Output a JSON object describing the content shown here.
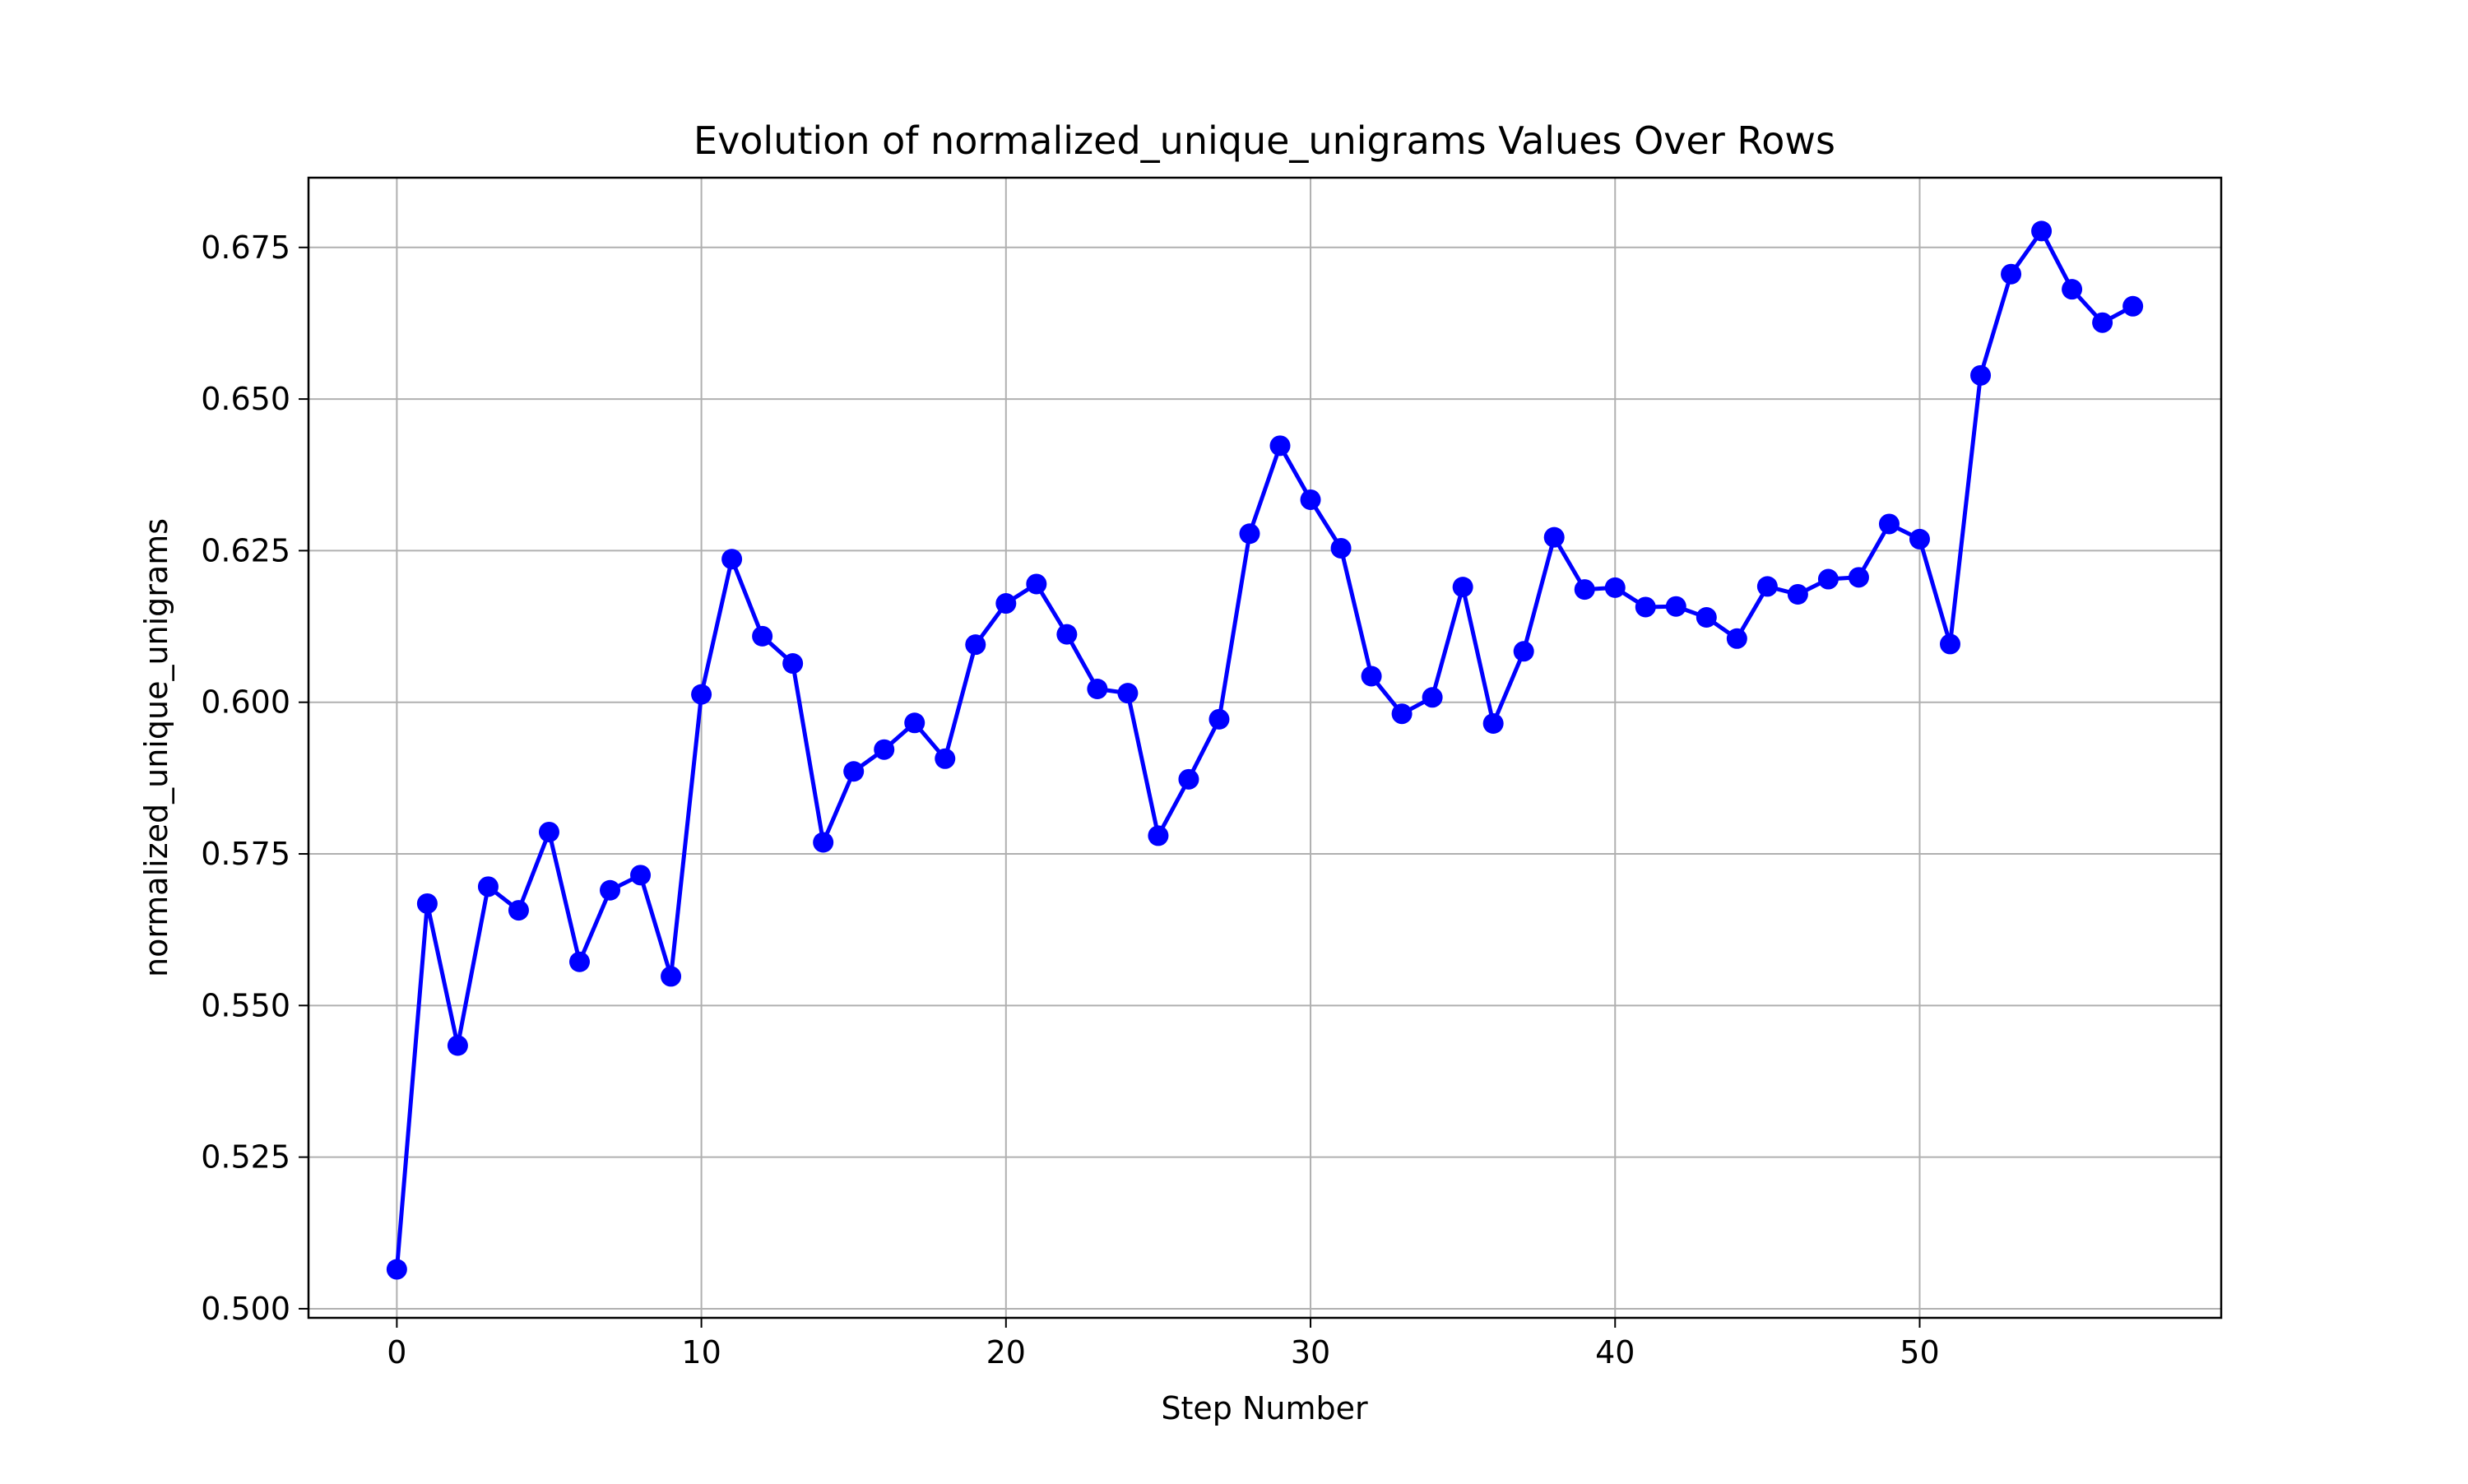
{
  "chart_data": {
    "type": "line",
    "title": "Evolution of normalized_unique_unigrams Values Over Rows",
    "xlabel": "Step Number",
    "ylabel": "normalized_unique_unigrams",
    "xlim": [
      -2.9,
      59.9
    ],
    "ylim": [
      0.4985,
      0.6865
    ],
    "x_ticks": [
      0,
      10,
      20,
      30,
      40,
      50
    ],
    "y_ticks": [
      0.5,
      0.525,
      0.55,
      0.575,
      0.6,
      0.625,
      0.65,
      0.675
    ],
    "x_tick_labels": [
      "0",
      "10",
      "20",
      "30",
      "40",
      "50"
    ],
    "y_tick_labels": [
      "0.500",
      "0.525",
      "0.550",
      "0.575",
      "0.600",
      "0.625",
      "0.650",
      "0.675"
    ],
    "grid": true,
    "legend": "none",
    "series": [
      {
        "color": "#0000ff",
        "marker": "circle",
        "x": [
          0,
          1,
          2,
          3,
          4,
          5,
          6,
          7,
          8,
          9,
          10,
          11,
          12,
          13,
          14,
          15,
          16,
          17,
          18,
          19,
          20,
          21,
          22,
          23,
          24,
          25,
          26,
          27,
          28,
          29,
          30,
          31,
          32,
          33,
          34,
          35,
          36,
          37,
          38,
          39,
          40,
          41,
          42,
          43,
          44,
          45,
          46,
          47,
          48,
          49,
          50,
          51,
          52,
          53,
          54,
          55,
          56,
          57
        ],
        "values": [
          0.5065,
          0.5668,
          0.5434,
          0.5696,
          0.5657,
          0.5786,
          0.5572,
          0.569,
          0.5715,
          0.5548,
          0.6013,
          0.6236,
          0.6109,
          0.6064,
          0.5769,
          0.5886,
          0.5922,
          0.5966,
          0.5907,
          0.6095,
          0.6163,
          0.6195,
          0.6112,
          0.6022,
          0.6015,
          0.578,
          0.5873,
          0.5972,
          0.6278,
          0.6423,
          0.6334,
          0.6254,
          0.6043,
          0.5981,
          0.6008,
          0.619,
          0.5965,
          0.6084,
          0.6272,
          0.6186,
          0.6189,
          0.6157,
          0.6158,
          0.614,
          0.6105,
          0.6191,
          0.6178,
          0.6203,
          0.6206,
          0.6294,
          0.6269,
          0.6096,
          0.6539,
          0.6706,
          0.6777,
          0.6681,
          0.6626,
          0.6653
        ]
      }
    ]
  }
}
